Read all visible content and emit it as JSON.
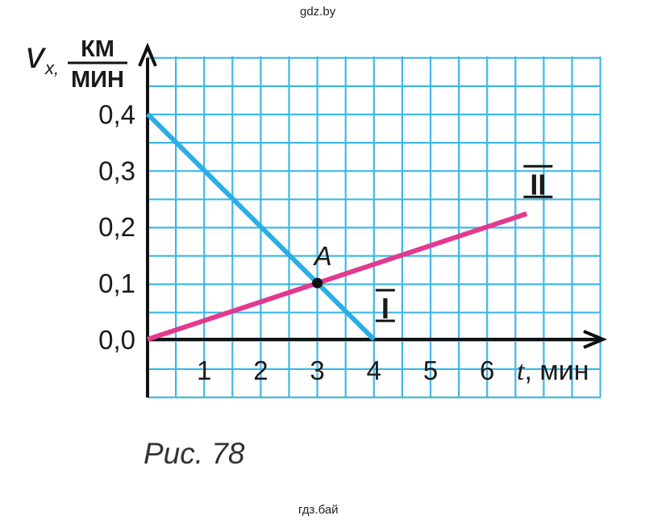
{
  "watermark_top": "gdz.by",
  "watermark_bottom": "гдз.бай",
  "caption": "Рис. 78",
  "chart_data": {
    "type": "line",
    "xlabel": "t, мин",
    "ylabel_symbol": "v",
    "ylabel_subscript": "x",
    "ylabel_unit_num": "км",
    "ylabel_unit_den": "мин",
    "xlim": [
      0,
      8
    ],
    "ylim": [
      -0.1,
      0.5
    ],
    "x_ticks": [
      1,
      2,
      3,
      4,
      5,
      6
    ],
    "x_tick_labels": [
      "1",
      "2",
      "3",
      "4",
      "5",
      "6"
    ],
    "y_ticks": [
      0.0,
      0.1,
      0.2,
      0.3,
      0.4
    ],
    "y_tick_labels": [
      "0,0",
      "0,1",
      "0,2",
      "0,3",
      "0,4"
    ],
    "grid": true,
    "grid_color": "#3fb8e6",
    "series": [
      {
        "name": "I",
        "color": "#2aaee6",
        "x": [
          0,
          4
        ],
        "y": [
          0.4,
          0.0
        ],
        "label_at": [
          4.2,
          0.06
        ]
      },
      {
        "name": "II",
        "color": "#e3398f",
        "x": [
          0,
          6.7
        ],
        "y": [
          0.0,
          0.223
        ],
        "label_at": [
          6.9,
          0.28
        ]
      }
    ],
    "points": [
      {
        "label": "A",
        "x": 3,
        "y": 0.1
      }
    ]
  }
}
